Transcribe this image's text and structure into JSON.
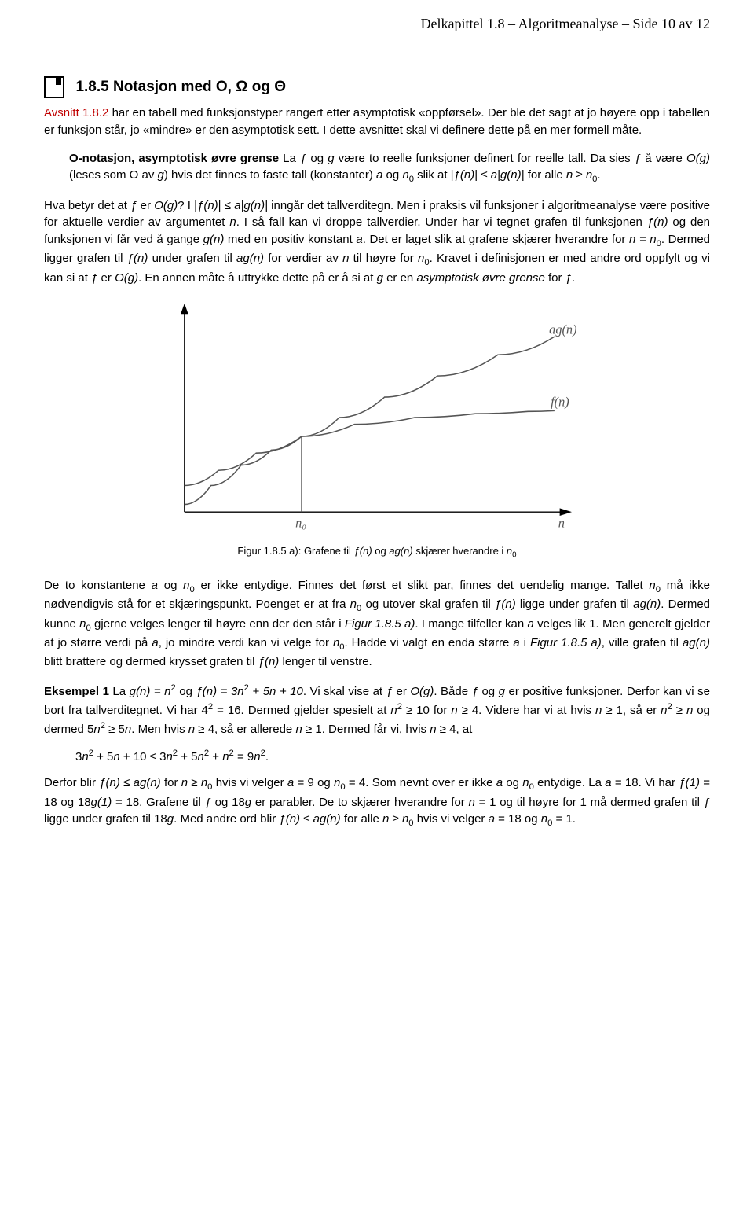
{
  "header": {
    "text": "Delkapittel 1.8 – Algoritmeanalyse – Side 10 av 12"
  },
  "section": {
    "title": "1.8.5  Notasjon med O, Ω og Θ"
  },
  "p1": {
    "avsnitt": "Avsnitt 1.8.2",
    "rest": " har en tabell med funksjonstyper rangert etter asymptotisk «oppførsel». Der ble det sagt at jo høyere opp i tabellen er funksjon står, jo «mindre» er den asymptotisk sett. I dette avsnittet skal vi definere dette på en mer formell måte."
  },
  "def1": {
    "lead": "O-notasjon, asymptotisk øvre grense",
    "body1": " La ",
    "f": "ƒ",
    "body2": " og ",
    "g": "g",
    "body3": " være to reelle funksjoner definert for reelle tall. Da sies ",
    "body4": " å være ",
    "Og": "O(g)",
    "body5": " (leses som O av ",
    "body6": ") hvis det finnes to faste tall (konstanter) ",
    "a": "a",
    "body7": " og ",
    "n0": "n",
    "body8": " slik at |",
    "fn": "ƒ(n)",
    "body9": "| ≤ ",
    "agn": "a|g(n)|",
    "body10": " for alle ",
    "n": "n",
    "body11": " ≥ ",
    "body12": "."
  },
  "p2": {
    "q1": "Hva betyr det at ",
    "q2": " er ",
    "q3": "O(g)",
    "q4": "? I |",
    "q5": "ƒ(n)",
    "q6": "| ≤ ",
    "q7": "a|g(n)|",
    "q8": " inngår det tallverditegn. Men i praksis vil funksjoner i algoritmeanalyse være positive for aktuelle verdier av argumentet ",
    "q9": "n",
    "q10": ". I så fall kan vi droppe tallverdier. Under har vi tegnet grafen til funksjonen ",
    "q11": "ƒ(n)",
    "q12": " og den funksjonen vi får ved å gange ",
    "q13": "g(n)",
    "q14": " med en positiv konstant ",
    "q15": "a",
    "q16": ". Det er laget slik at grafene skjærer hverandre for ",
    "q17": "n = n",
    "q18": ". Dermed ligger grafen til ",
    "q19": "ƒ(n)",
    "q20": " under grafen til ",
    "q21": "ag(n)",
    "q22": " for verdier av ",
    "q23": "n",
    "q24": " til høyre for ",
    "q25": "n",
    "q26": ". Kravet i definisjonen er med andre ord oppfylt og vi kan si at ",
    "q27": "ƒ",
    "q28": " er ",
    "q29": "O(g)",
    "q30": ". En annen måte å uttrykke dette på er å si at ",
    "q31": "g",
    "q32": " er en ",
    "q33": "asymptotisk øvre grense",
    "q34": " for ",
    "q35": "ƒ",
    "q36": "."
  },
  "chart": {
    "label_agn": "ag(n)",
    "label_fn": "f(n)",
    "label_n0": "n₀",
    "label_n": "n",
    "axis_color": "#000000",
    "curve_color": "#555555",
    "drop_color": "#555555",
    "bg": "#ffffff",
    "font_size": 17,
    "font_family": "Georgia, serif",
    "font_style": "italic",
    "xlim": [
      0,
      520
    ],
    "ylim": [
      0,
      300
    ],
    "intersect_x": 170,
    "intersect_y": 180,
    "fn_points": [
      [
        15,
        245
      ],
      [
        60,
        225
      ],
      [
        110,
        202
      ],
      [
        170,
        180
      ],
      [
        240,
        164
      ],
      [
        320,
        155
      ],
      [
        400,
        150
      ],
      [
        470,
        147
      ],
      [
        505,
        146
      ]
    ],
    "agn_points": [
      [
        15,
        270
      ],
      [
        50,
        245
      ],
      [
        90,
        218
      ],
      [
        130,
        198
      ],
      [
        170,
        180
      ],
      [
        220,
        155
      ],
      [
        280,
        128
      ],
      [
        350,
        100
      ],
      [
        430,
        72
      ],
      [
        505,
        48
      ]
    ]
  },
  "caption": {
    "pre": "Figur 1.8.5 a): Grafene til ",
    "fn": "ƒ(n)",
    "mid": " og ",
    "agn": "ag(n)",
    "mid2": " skjærer hverandre i ",
    "n0": "n"
  },
  "p3": {
    "t1": "De to konstantene ",
    "a": "a",
    "t2": " og ",
    "n0": "n",
    "t3": " er ikke entydige. Finnes det først et slikt par, finnes det uendelig mange. Tallet ",
    "t4": " må ikke nødvendigvis stå for et skjæringspunkt. Poenget er at fra ",
    "t5": " og utover skal grafen til ",
    "fn": "ƒ(n)",
    "t6": " ligge under grafen til ",
    "agn": "ag(n)",
    "t7": ". Dermed kunne ",
    "t8": " gjerne velges lenger til høyre enn der den står i ",
    "fig": "Figur 1.8.5 a)",
    "t9": ". I mange tilfeller kan ",
    "t10": " velges lik 1. Men generelt gjelder at jo større verdi på ",
    "t11": ", jo mindre verdi kan vi velge for ",
    "t12": ". Hadde vi valgt en enda større ",
    "t13": " i ",
    "t14": ", ville grafen til ",
    "t15": " blitt brattere og dermed krysset grafen til ",
    "t16": " lenger til venstre."
  },
  "ex1": {
    "lead": "Eksempel 1",
    "t1": "  La ",
    "g": "g(n) = n",
    "t2": " og ",
    "f": "ƒ(n) = 3n",
    "f2": " + 5n + 10",
    "t3": ". Vi skal vise at ",
    "t4": "ƒ",
    "t5": " er ",
    "Og": "O(g)",
    "t6": ". Både ",
    "t7": " og ",
    "gg": "g",
    "t8": " er positive funksjoner. Derfor kan vi se bort fra tallverditegnet. Vi har 4",
    "t9": " = 16. Dermed gjelder spesielt at ",
    "n2": "n",
    "t10": " ≥ 10 for ",
    "n": "n",
    "t11": " ≥ 4. Videre har vi at hvis ",
    "t12": " ≥ 1, så er ",
    "t13": " ≥ ",
    "t14": " og dermed 5",
    "t15": " ≥ 5",
    "t16": ". Men hvis ",
    "t17": " ≥ 4, så er allerede ",
    "t18": " ≥ 1. Dermed får vi, hvis ",
    "t19": " ≥ 4, at"
  },
  "eq": {
    "text": "3n² + 5n + 10 ≤ 3n² + 5n² + n² = 9n²."
  },
  "p4": {
    "t1": "Derfor blir ",
    "fn": "ƒ(n)",
    "t2": " ≤ ",
    "agn": "ag(n)",
    "t3": " for ",
    "n": "n",
    "t4": " ≥ ",
    "n0": "n",
    "t5": " hvis vi velger ",
    "a": "a",
    "t6": " = 9 og ",
    "t7": " = 4. Som nevnt over er ikke ",
    "t8": " og ",
    "t9": " entydige. La ",
    "t10": " = 18. Vi har ",
    "f1": "ƒ(1)",
    "t11": " = 18 og 18",
    "g1": "g(1)",
    "t12": " = 18.  Grafene til ",
    "ff": "ƒ",
    "t13": " og 18",
    "gg": "g",
    "t14": " er parabler. De to skjærer hverandre for ",
    "t15": " = 1 og til høyre for 1 må dermed grafen til ",
    "t16": " ligge under grafen til 18",
    "t17": ". Med andre ord blir ",
    "t18": " ≤ ",
    "t19": " for alle ",
    "t20": " ≥ ",
    "t21": " hvis vi velger ",
    "t22": " = 18 og ",
    "t23": " = 1."
  }
}
